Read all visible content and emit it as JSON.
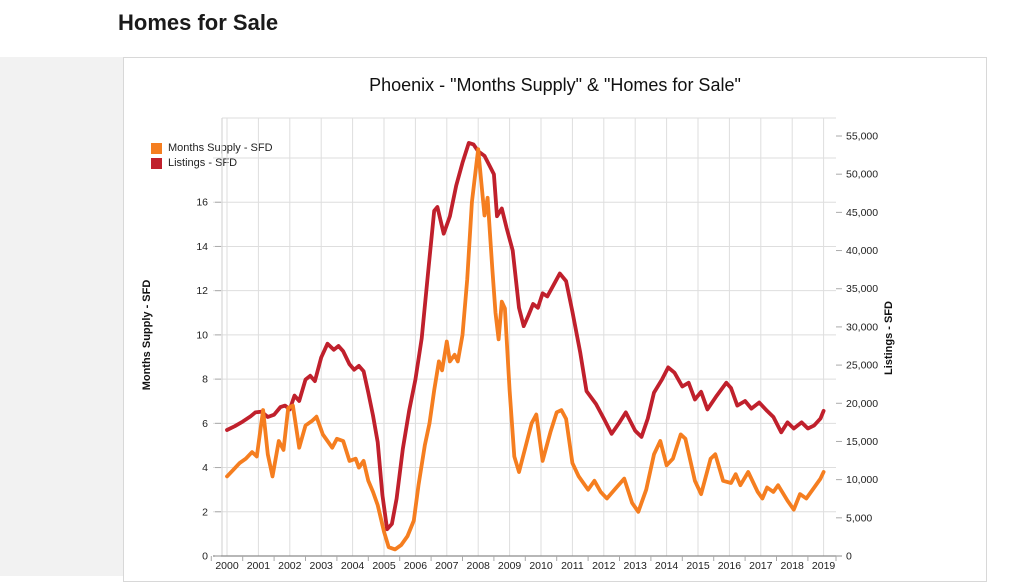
{
  "page": {
    "heading_line1": "&",
    "heading_line2": "Homes for Sale"
  },
  "chart": {
    "title": "Phoenix - \"Months Supply\" & \"Homes for Sale\"",
    "legend": [
      {
        "label": "Months Supply - SFD",
        "color": "#F57E20"
      },
      {
        "label": "Listings - SFD",
        "color": "#C0202C"
      }
    ],
    "left_axis_title": "Months Supply - SFD",
    "right_axis_title": "Listings - SFD",
    "colors": {
      "months_supply": "#F57E20",
      "listings": "#C0202C",
      "gridline": "#DEDEDE",
      "axis_line": "#8C8C8C",
      "tick_text": "#222222"
    }
  },
  "chart_data": {
    "type": "line",
    "title": "Phoenix - \"Months Supply\" & \"Homes for Sale\"",
    "legend_position": "top-left-inside",
    "grid": true,
    "x_ticks": [
      2000,
      2001,
      2002,
      2003,
      2004,
      2005,
      2006,
      2007,
      2008,
      2009,
      2010,
      2011,
      2012,
      2013,
      2014,
      2015,
      2016,
      2017,
      2018,
      2019
    ],
    "left_axis": {
      "label": "Months Supply - SFD",
      "ticks": [
        0,
        2,
        4,
        6,
        8,
        10,
        12,
        14,
        16
      ],
      "range": [
        0,
        18
      ]
    },
    "right_axis": {
      "label": "Listings - SFD",
      "ticks": [
        0,
        5000,
        10000,
        15000,
        20000,
        25000,
        30000,
        35000,
        40000,
        45000,
        50000,
        55000
      ],
      "range": [
        0,
        55000
      ],
      "tick_format": "thousands-comma"
    },
    "series": [
      {
        "name": "Listings - SFD",
        "axis": "right",
        "color": "#C0202C",
        "points": [
          [
            2000.0,
            16500
          ],
          [
            2000.25,
            17000
          ],
          [
            2000.5,
            17600
          ],
          [
            2000.75,
            18300
          ],
          [
            2000.9,
            18800
          ],
          [
            2001.1,
            18900
          ],
          [
            2001.3,
            18200
          ],
          [
            2001.5,
            18500
          ],
          [
            2001.7,
            19500
          ],
          [
            2001.85,
            19700
          ],
          [
            2002.0,
            19200
          ],
          [
            2002.15,
            21000
          ],
          [
            2002.3,
            20300
          ],
          [
            2002.5,
            23100
          ],
          [
            2002.65,
            23600
          ],
          [
            2002.8,
            22900
          ],
          [
            2003.0,
            26000
          ],
          [
            2003.2,
            27800
          ],
          [
            2003.4,
            27000
          ],
          [
            2003.55,
            27500
          ],
          [
            2003.7,
            26800
          ],
          [
            2003.9,
            25100
          ],
          [
            2004.05,
            24400
          ],
          [
            2004.2,
            24900
          ],
          [
            2004.35,
            24200
          ],
          [
            2004.5,
            21400
          ],
          [
            2004.65,
            18400
          ],
          [
            2004.8,
            14900
          ],
          [
            2004.95,
            8000
          ],
          [
            2005.1,
            3500
          ],
          [
            2005.25,
            4200
          ],
          [
            2005.4,
            7500
          ],
          [
            2005.6,
            14000
          ],
          [
            2005.8,
            19000
          ],
          [
            2006.0,
            23100
          ],
          [
            2006.2,
            28500
          ],
          [
            2006.4,
            37000
          ],
          [
            2006.6,
            45200
          ],
          [
            2006.7,
            45700
          ],
          [
            2006.9,
            42200
          ],
          [
            2007.1,
            44500
          ],
          [
            2007.3,
            48500
          ],
          [
            2007.5,
            51500
          ],
          [
            2007.7,
            54100
          ],
          [
            2007.85,
            53900
          ],
          [
            2008.0,
            53000
          ],
          [
            2008.2,
            52400
          ],
          [
            2008.35,
            51200
          ],
          [
            2008.5,
            50000
          ],
          [
            2008.6,
            44500
          ],
          [
            2008.75,
            45500
          ],
          [
            2008.9,
            43000
          ],
          [
            2009.1,
            40000
          ],
          [
            2009.3,
            32500
          ],
          [
            2009.45,
            30100
          ],
          [
            2009.6,
            31500
          ],
          [
            2009.75,
            33000
          ],
          [
            2009.9,
            32500
          ],
          [
            2010.05,
            34400
          ],
          [
            2010.2,
            34000
          ],
          [
            2010.4,
            35500
          ],
          [
            2010.6,
            37000
          ],
          [
            2010.8,
            36000
          ],
          [
            2011.0,
            32000
          ],
          [
            2011.25,
            26600
          ],
          [
            2011.45,
            21600
          ],
          [
            2011.75,
            19900
          ],
          [
            2012.0,
            18000
          ],
          [
            2012.25,
            16000
          ],
          [
            2012.5,
            17500
          ],
          [
            2012.7,
            18800
          ],
          [
            2013.0,
            16400
          ],
          [
            2013.2,
            15600
          ],
          [
            2013.4,
            18000
          ],
          [
            2013.6,
            21400
          ],
          [
            2013.85,
            23100
          ],
          [
            2014.05,
            24700
          ],
          [
            2014.25,
            24000
          ],
          [
            2014.5,
            22200
          ],
          [
            2014.7,
            22700
          ],
          [
            2014.9,
            20500
          ],
          [
            2015.1,
            21500
          ],
          [
            2015.3,
            19200
          ],
          [
            2015.6,
            21000
          ],
          [
            2015.9,
            22700
          ],
          [
            2016.05,
            22000
          ],
          [
            2016.25,
            19700
          ],
          [
            2016.5,
            20300
          ],
          [
            2016.7,
            19300
          ],
          [
            2016.95,
            20100
          ],
          [
            2017.2,
            19000
          ],
          [
            2017.4,
            18200
          ],
          [
            2017.65,
            16200
          ],
          [
            2017.85,
            17500
          ],
          [
            2018.05,
            16700
          ],
          [
            2018.3,
            17500
          ],
          [
            2018.5,
            16700
          ],
          [
            2018.7,
            17100
          ],
          [
            2018.9,
            18000
          ],
          [
            2019.0,
            19000
          ]
        ]
      },
      {
        "name": "Months Supply - SFD",
        "axis": "left",
        "color": "#F57E20",
        "points": [
          [
            2000.0,
            3.6
          ],
          [
            2000.2,
            3.9
          ],
          [
            2000.4,
            4.2
          ],
          [
            2000.6,
            4.4
          ],
          [
            2000.8,
            4.7
          ],
          [
            2000.95,
            4.5
          ],
          [
            2001.15,
            6.6
          ],
          [
            2001.3,
            4.6
          ],
          [
            2001.45,
            3.6
          ],
          [
            2001.65,
            5.2
          ],
          [
            2001.8,
            4.8
          ],
          [
            2001.95,
            6.7
          ],
          [
            2002.1,
            6.8
          ],
          [
            2002.3,
            4.9
          ],
          [
            2002.5,
            5.9
          ],
          [
            2002.7,
            6.1
          ],
          [
            2002.85,
            6.3
          ],
          [
            2003.05,
            5.5
          ],
          [
            2003.2,
            5.2
          ],
          [
            2003.35,
            4.9
          ],
          [
            2003.5,
            5.3
          ],
          [
            2003.7,
            5.2
          ],
          [
            2003.9,
            4.3
          ],
          [
            2004.1,
            4.4
          ],
          [
            2004.2,
            4.0
          ],
          [
            2004.35,
            4.3
          ],
          [
            2004.5,
            3.4
          ],
          [
            2004.65,
            2.9
          ],
          [
            2004.8,
            2.3
          ],
          [
            2005.0,
            1.1
          ],
          [
            2005.15,
            0.4
          ],
          [
            2005.35,
            0.3
          ],
          [
            2005.55,
            0.5
          ],
          [
            2005.75,
            0.9
          ],
          [
            2005.95,
            1.6
          ],
          [
            2006.1,
            3.2
          ],
          [
            2006.3,
            5.0
          ],
          [
            2006.45,
            6.0
          ],
          [
            2006.6,
            7.5
          ],
          [
            2006.75,
            8.8
          ],
          [
            2006.85,
            8.4
          ],
          [
            2007.0,
            9.7
          ],
          [
            2007.1,
            8.8
          ],
          [
            2007.25,
            9.1
          ],
          [
            2007.35,
            8.8
          ],
          [
            2007.5,
            10.0
          ],
          [
            2007.65,
            12.5
          ],
          [
            2007.8,
            16.0
          ],
          [
            2007.95,
            17.8
          ],
          [
            2008.0,
            18.4
          ],
          [
            2008.1,
            16.9
          ],
          [
            2008.2,
            15.4
          ],
          [
            2008.3,
            16.2
          ],
          [
            2008.45,
            13.0
          ],
          [
            2008.55,
            11.0
          ],
          [
            2008.65,
            9.8
          ],
          [
            2008.75,
            11.5
          ],
          [
            2008.85,
            11.2
          ],
          [
            2009.0,
            7.5
          ],
          [
            2009.15,
            4.5
          ],
          [
            2009.3,
            3.8
          ],
          [
            2009.5,
            4.9
          ],
          [
            2009.7,
            6.0
          ],
          [
            2009.85,
            6.4
          ],
          [
            2010.05,
            4.3
          ],
          [
            2010.3,
            5.6
          ],
          [
            2010.5,
            6.5
          ],
          [
            2010.65,
            6.6
          ],
          [
            2010.8,
            6.2
          ],
          [
            2011.0,
            4.2
          ],
          [
            2011.2,
            3.6
          ],
          [
            2011.5,
            3.0
          ],
          [
            2011.7,
            3.4
          ],
          [
            2011.9,
            2.9
          ],
          [
            2012.1,
            2.6
          ],
          [
            2012.4,
            3.1
          ],
          [
            2012.65,
            3.5
          ],
          [
            2012.9,
            2.4
          ],
          [
            2013.1,
            2.0
          ],
          [
            2013.35,
            3.0
          ],
          [
            2013.6,
            4.6
          ],
          [
            2013.8,
            5.2
          ],
          [
            2014.0,
            4.1
          ],
          [
            2014.2,
            4.4
          ],
          [
            2014.45,
            5.5
          ],
          [
            2014.6,
            5.3
          ],
          [
            2014.9,
            3.4
          ],
          [
            2015.1,
            2.8
          ],
          [
            2015.4,
            4.4
          ],
          [
            2015.55,
            4.6
          ],
          [
            2015.8,
            3.4
          ],
          [
            2016.05,
            3.3
          ],
          [
            2016.2,
            3.7
          ],
          [
            2016.35,
            3.2
          ],
          [
            2016.6,
            3.8
          ],
          [
            2016.9,
            2.9
          ],
          [
            2017.05,
            2.6
          ],
          [
            2017.2,
            3.1
          ],
          [
            2017.4,
            2.9
          ],
          [
            2017.55,
            3.2
          ],
          [
            2017.85,
            2.5
          ],
          [
            2018.05,
            2.1
          ],
          [
            2018.25,
            2.8
          ],
          [
            2018.45,
            2.6
          ],
          [
            2018.7,
            3.1
          ],
          [
            2018.9,
            3.5
          ],
          [
            2019.0,
            3.8
          ]
        ]
      }
    ]
  }
}
